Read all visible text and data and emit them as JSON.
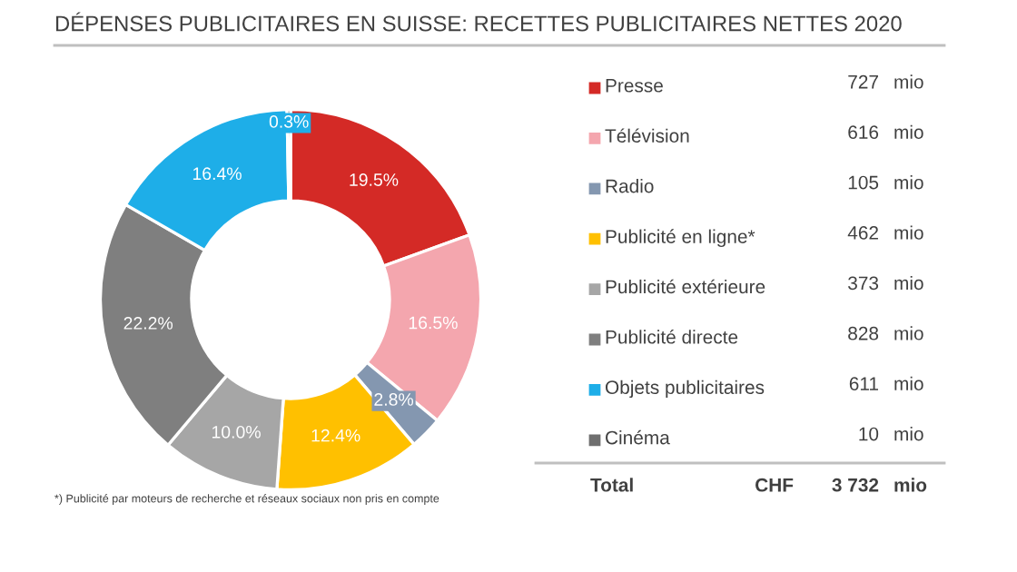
{
  "chart_data": {
    "type": "donut",
    "title": "DÉPENSES PUBLICITAIRES EN SUISSE: RECETTES PUBLICITAIRES NETTES 2020",
    "categories": [
      "Presse",
      "Télévision",
      "Radio",
      "Publicité en ligne*",
      "Publicité extérieure",
      "Publicité directe",
      "Objets publicitaires",
      "Cinéma"
    ],
    "values": [
      19.5,
      16.5,
      2.8,
      12.4,
      10.0,
      22.2,
      16.4,
      0.3
    ],
    "value_labels": [
      "19.5%",
      "16.5%",
      "2.8%",
      "12.4%",
      "10.0%",
      "22.2%",
      "16.4%",
      "0.3%"
    ],
    "colors": [
      "#d42a26",
      "#f4a6ae",
      "#8497b0",
      "#ffc000",
      "#a6a6a6",
      "#7f7f7f",
      "#1eaee8",
      "#6f6f6f"
    ],
    "data_labels": true,
    "legend": "right",
    "annotations": [
      "727",
      "616",
      "105",
      "462",
      "373",
      "828",
      "611",
      "10",
      "mio",
      "Total",
      "CHF",
      "3 732",
      "*) Publicité par moteurs de recherche et réseaux sociaux non pris en compte"
    ]
  }
}
